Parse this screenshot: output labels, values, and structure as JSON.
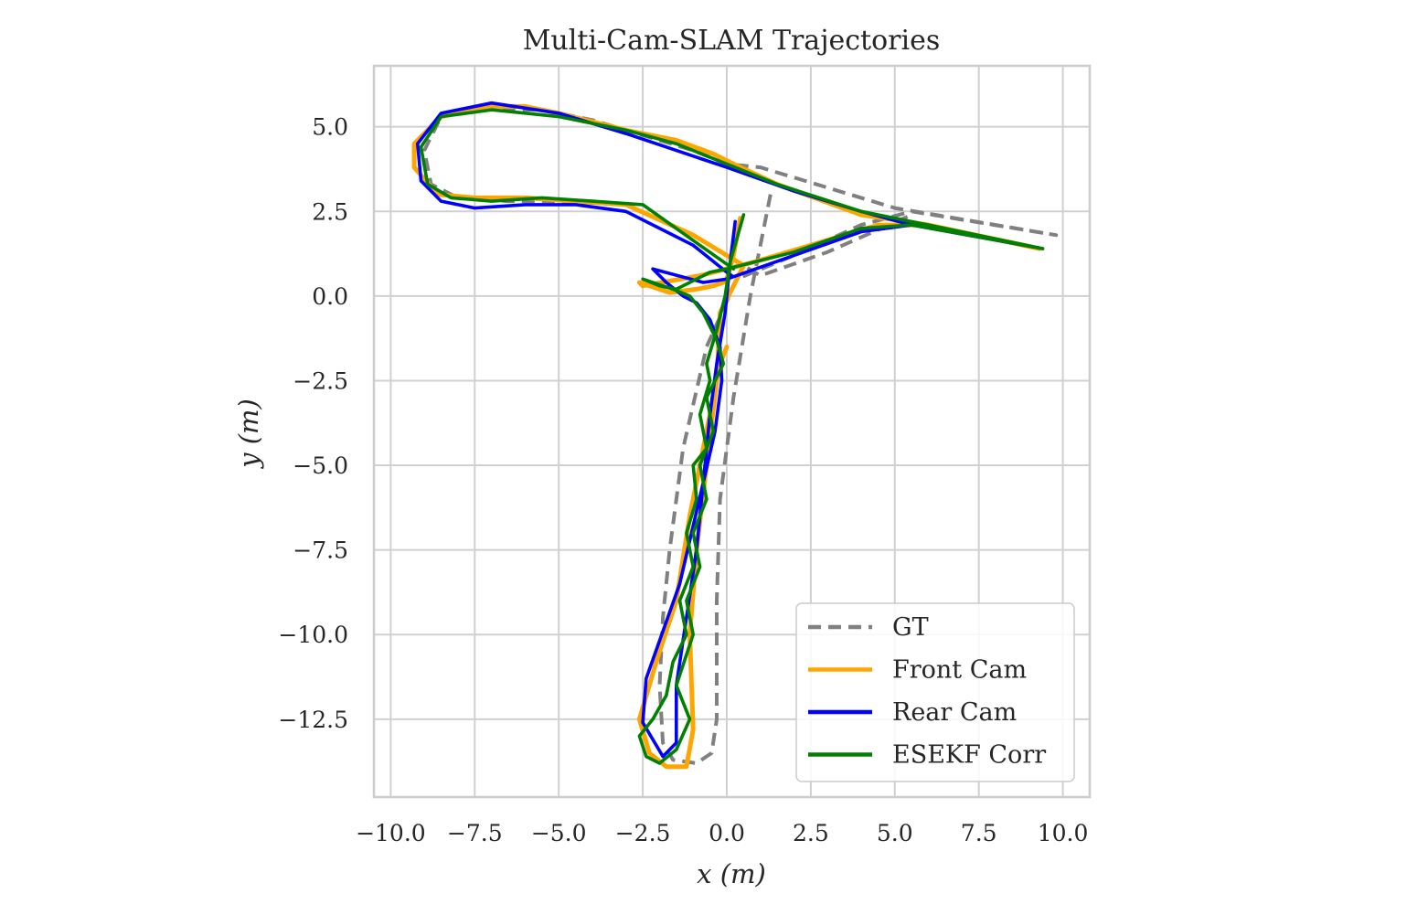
{
  "chart_data": {
    "type": "line",
    "title": "Multi-Cam-SLAM Trajectories",
    "xlabel": "x (m)",
    "ylabel": "y (m)",
    "xlim": [
      -10.5,
      10.8
    ],
    "ylim": [
      -14.8,
      6.8
    ],
    "xticks": [
      -10.0,
      -7.5,
      -5.0,
      -2.5,
      0.0,
      2.5,
      5.0,
      7.5,
      10.0
    ],
    "xtick_labels": [
      "−10.0",
      "−7.5",
      "−5.0",
      "−2.5",
      "0.0",
      "2.5",
      "5.0",
      "7.5",
      "10.0"
    ],
    "yticks": [
      5.0,
      2.5,
      0.0,
      -2.5,
      -5.0,
      -7.5,
      -10.0,
      -12.5
    ],
    "ytick_labels": [
      "5.0",
      "2.5",
      "0.0",
      "−2.5",
      "−5.0",
      "−7.5",
      "−10.0",
      "−12.5"
    ],
    "grid": true,
    "legend_position": "lower-right",
    "series": [
      {
        "name": "GT",
        "color": "#808080",
        "dash": "dashed",
        "x": [
          1.3,
          0.7,
          0.2,
          -0.2,
          -0.3,
          -0.3,
          -0.45,
          -0.9,
          -1.6,
          -1.9,
          -2.0,
          -1.9,
          -1.7,
          -1.3,
          -0.6,
          0.3,
          2.0,
          4.0,
          5.5,
          9.8,
          5.0,
          2.0,
          1.0,
          0.0,
          -0.5,
          -1.0,
          -2.0,
          -3.0,
          -4.0,
          -5.5,
          -7.5,
          -8.5,
          -9.0,
          -8.8,
          -8.0,
          -6.5,
          -5.0,
          -3.0,
          -1.0,
          1.0,
          3.0,
          5.5
        ],
        "y": [
          3.0,
          0.0,
          -3.0,
          -6.0,
          -9.0,
          -12.5,
          -13.5,
          -13.8,
          -13.7,
          -13.2,
          -11.5,
          -9.5,
          -7.5,
          -4.5,
          -1.5,
          0.5,
          1.2,
          2.1,
          2.5,
          1.8,
          2.6,
          3.5,
          3.8,
          3.9,
          4.1,
          4.3,
          4.6,
          4.9,
          5.2,
          5.5,
          5.5,
          5.3,
          4.3,
          3.3,
          2.9,
          2.8,
          2.8,
          2.7,
          1.8,
          0.6,
          1.3,
          2.4
        ]
      },
      {
        "name": "Front Cam",
        "color": "#FFA500",
        "dash": "solid",
        "x": [
          0.4,
          0.2,
          0.0,
          -0.1,
          -0.4,
          -0.9,
          -1.7,
          -2.6,
          -2.5,
          -0.8,
          0.0,
          0.8,
          2.5,
          4.5,
          6.0,
          9.3,
          6.0,
          4.0,
          1.5,
          0.2,
          -0.4,
          -1.5,
          -3.0,
          -5.0,
          -6.0,
          -7.0,
          -8.5,
          -9.3,
          -9.3,
          -8.6,
          -7.5,
          -6.0,
          -4.5,
          -3.0,
          -1.0,
          0.5,
          -0.2,
          -0.3,
          -0.6,
          -0.9,
          -1.1,
          -1.0,
          -1.2,
          -1.8,
          -2.3,
          -2.6,
          -2.1,
          -1.5,
          -1.1,
          -0.6,
          -0.2,
          0.0
        ],
        "y": [
          2.3,
          1.2,
          0.5,
          0.4,
          0.3,
          0.2,
          0.1,
          0.4,
          0.3,
          0.6,
          0.8,
          1.0,
          1.5,
          2.1,
          2.1,
          1.4,
          2.1,
          2.4,
          3.3,
          3.9,
          4.2,
          4.6,
          4.9,
          5.4,
          5.6,
          5.6,
          5.3,
          4.5,
          3.8,
          3.0,
          2.9,
          2.9,
          2.8,
          2.7,
          1.8,
          0.9,
          -0.5,
          -2.5,
          -5.0,
          -7.5,
          -10.0,
          -12.8,
          -13.9,
          -13.9,
          -13.5,
          -12.5,
          -10.8,
          -9.0,
          -6.5,
          -4.0,
          -2.0,
          -1.5
        ]
      },
      {
        "name": "Rear Cam",
        "color": "#0000FF",
        "dash": "solid",
        "x": [
          0.25,
          0.1,
          -0.05,
          -0.3,
          -0.5,
          -0.7,
          -0.9,
          -1.2,
          -1.5,
          -1.5,
          -1.9,
          -2.5,
          -2.4,
          -1.4,
          -0.7,
          -0.35,
          -0.15,
          -0.2,
          -0.5,
          -0.9,
          -1.3,
          -1.8,
          -2.2,
          -0.7,
          0.0,
          2.0,
          4.0,
          5.5,
          9.4,
          5.5,
          4.0,
          2.0,
          0.0,
          -1.5,
          -3.0,
          -5.0,
          -7.0,
          -8.5,
          -9.2,
          -9.1,
          -8.5,
          -7.5,
          -6.0,
          -4.5,
          -3.0,
          -1.0,
          0.0,
          0.15
        ],
        "y": [
          2.2,
          1.0,
          -0.5,
          -2.0,
          -3.5,
          -5.5,
          -7.5,
          -9.5,
          -11.5,
          -13.2,
          -13.6,
          -12.6,
          -11.3,
          -8.5,
          -5.5,
          -4.0,
          -2.5,
          -1.5,
          -0.7,
          -0.2,
          0.0,
          0.4,
          0.8,
          0.4,
          0.5,
          1.2,
          1.9,
          2.1,
          1.4,
          2.1,
          2.5,
          3.1,
          3.8,
          4.3,
          4.8,
          5.4,
          5.7,
          5.4,
          4.5,
          3.4,
          2.8,
          2.6,
          2.7,
          2.7,
          2.5,
          1.5,
          0.7,
          0.6
        ]
      },
      {
        "name": "ESEKF Corr",
        "color": "#008000",
        "dash": "solid",
        "x": [
          0.5,
          0.1,
          -0.05,
          -0.3,
          -0.6,
          -0.5,
          -0.8,
          -0.6,
          -1.0,
          -0.9,
          -1.2,
          -1.0,
          -1.4,
          -1.2,
          -1.6,
          -1.8,
          -2.2,
          -2.6,
          -2.4,
          -2.0,
          -1.5,
          -1.1,
          -1.5,
          -1.0,
          -1.2,
          -0.8,
          -1.0,
          -0.6,
          -0.8,
          -0.4,
          -0.6,
          -0.1,
          -0.3,
          -0.7,
          -1.1,
          -1.6,
          -2.5,
          -2.0,
          -1.5,
          -0.5,
          0.0,
          2.0,
          4.0,
          5.5,
          9.4,
          6.0,
          4.0,
          1.5,
          0.0,
          -1.5,
          -3.0,
          -5.0,
          -7.0,
          -8.5,
          -9.1,
          -8.9,
          -8.2,
          -7.0,
          -5.5,
          -4.0,
          -2.5,
          -0.8,
          0.2
        ],
        "y": [
          2.4,
          1.0,
          0.0,
          -1.0,
          -2.0,
          -2.5,
          -3.5,
          -4.5,
          -5.0,
          -6.0,
          -7.0,
          -8.0,
          -9.0,
          -10.0,
          -10.8,
          -11.8,
          -12.5,
          -13.0,
          -13.6,
          -13.8,
          -13.4,
          -12.5,
          -11.5,
          -10.0,
          -9.0,
          -8.0,
          -7.0,
          -6.0,
          -5.0,
          -4.0,
          -3.0,
          -2.0,
          -1.3,
          -0.5,
          0.0,
          0.2,
          0.5,
          0.3,
          0.2,
          0.7,
          0.8,
          1.3,
          2.0,
          2.1,
          1.4,
          2.1,
          2.5,
          3.3,
          3.9,
          4.5,
          4.9,
          5.3,
          5.5,
          5.3,
          4.4,
          3.3,
          2.9,
          2.8,
          2.9,
          2.8,
          2.7,
          1.5,
          0.8
        ]
      }
    ]
  }
}
